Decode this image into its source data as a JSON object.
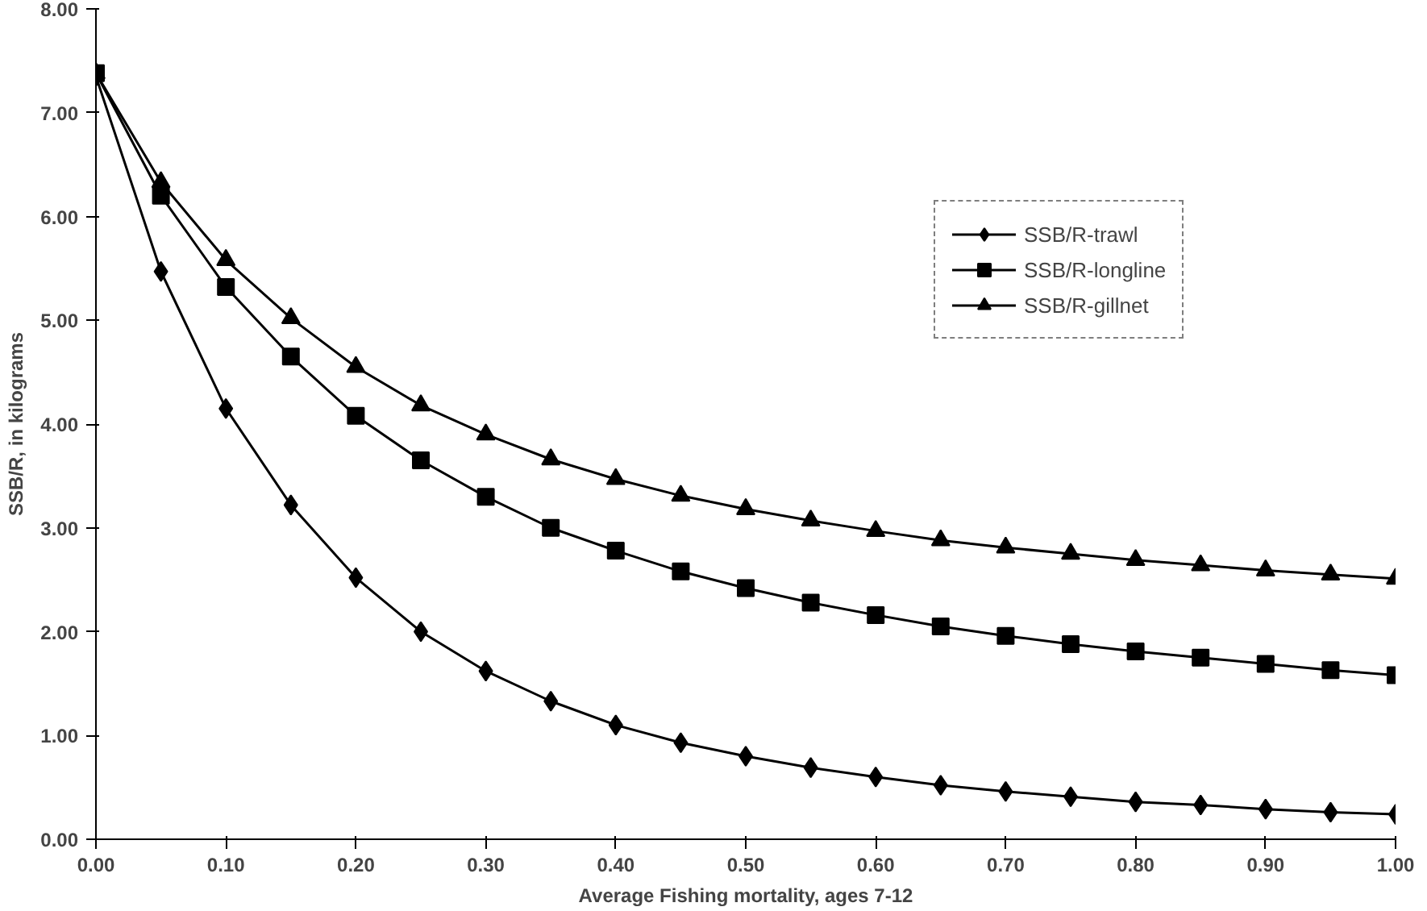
{
  "chart_data": {
    "type": "line",
    "xlabel": "Average Fishing mortality, ages 7-12",
    "ylabel": "SSB/R, in kilograms",
    "x": [
      0.0,
      0.05,
      0.1,
      0.15,
      0.2,
      0.25,
      0.3,
      0.35,
      0.4,
      0.45,
      0.5,
      0.55,
      0.6,
      0.65,
      0.7,
      0.75,
      0.8,
      0.85,
      0.9,
      0.95,
      1.0
    ],
    "series": [
      {
        "name": "SSB/R-trawl",
        "color": "#000000",
        "marker": "diamond",
        "values": [
          7.35,
          5.47,
          4.15,
          3.22,
          2.52,
          2.0,
          1.62,
          1.33,
          1.1,
          0.93,
          0.8,
          0.69,
          0.6,
          0.52,
          0.46,
          0.41,
          0.36,
          0.33,
          0.29,
          0.26,
          0.24
        ]
      },
      {
        "name": "SSB/R-longline",
        "color": "#000000",
        "marker": "square",
        "values": [
          7.38,
          6.2,
          5.32,
          4.65,
          4.08,
          3.65,
          3.3,
          3.0,
          2.78,
          2.58,
          2.42,
          2.28,
          2.16,
          2.05,
          1.96,
          1.88,
          1.81,
          1.75,
          1.69,
          1.63,
          1.58
        ]
      },
      {
        "name": "SSB/R-gillnet",
        "color": "#000000",
        "marker": "triangle",
        "values": [
          7.38,
          6.33,
          5.58,
          5.02,
          4.55,
          4.18,
          3.9,
          3.66,
          3.47,
          3.31,
          3.18,
          3.07,
          2.97,
          2.88,
          2.81,
          2.75,
          2.69,
          2.64,
          2.59,
          2.55,
          2.51
        ]
      }
    ],
    "xlim": [
      0,
      1
    ],
    "ylim": [
      0,
      8
    ],
    "xticks": [
      {
        "value": 0,
        "label": "0.00"
      },
      {
        "value": 0.1,
        "label": "0.10"
      },
      {
        "value": 0.2,
        "label": "0.20"
      },
      {
        "value": 0.3,
        "label": "0.30"
      },
      {
        "value": 0.4,
        "label": "0.40"
      },
      {
        "value": 0.5,
        "label": "0.50"
      },
      {
        "value": 0.6,
        "label": "0.60"
      },
      {
        "value": 0.7,
        "label": "0.70"
      },
      {
        "value": 0.8,
        "label": "0.80"
      },
      {
        "value": 0.9,
        "label": "0.90"
      },
      {
        "value": 1.0,
        "label": "1.00"
      }
    ],
    "yticks": [
      {
        "value": 0,
        "label": "0.00"
      },
      {
        "value": 1,
        "label": "1.00"
      },
      {
        "value": 2,
        "label": "2.00"
      },
      {
        "value": 3,
        "label": "3.00"
      },
      {
        "value": 4,
        "label": "4.00"
      },
      {
        "value": 5,
        "label": "5.00"
      },
      {
        "value": 6,
        "label": "6.00"
      },
      {
        "value": 7,
        "label": "7.00"
      },
      {
        "value": 8,
        "label": "8.00"
      }
    ],
    "grid": false,
    "legend": "top right",
    "line_style": "solid"
  }
}
